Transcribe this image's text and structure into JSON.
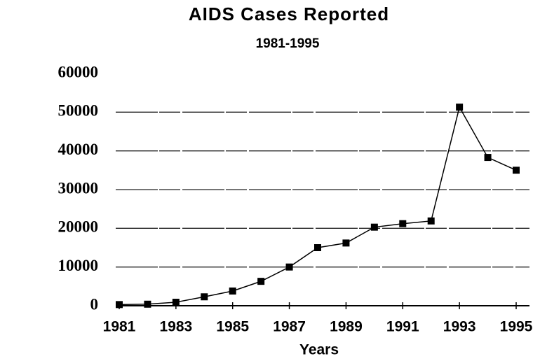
{
  "chart_data": {
    "type": "line",
    "title": "AIDS Cases Reported",
    "subtitle": "1981-1995",
    "xlabel": "Years",
    "x": [
      1981,
      1982,
      1983,
      1984,
      1985,
      1986,
      1987,
      1988,
      1989,
      1990,
      1991,
      1992,
      1993,
      1994,
      1995
    ],
    "series": [
      {
        "name": "AIDS cases",
        "color": "#000000",
        "values": [
          300,
          400,
          900,
          2300,
          3800,
          6300,
          10000,
          15000,
          16200,
          20300,
          21200,
          21900,
          51300,
          38300,
          35000
        ]
      }
    ],
    "xlim": [
      1981,
      1995
    ],
    "xticks": [
      1981,
      1983,
      1985,
      1987,
      1989,
      1991,
      1993,
      1995
    ],
    "ylim": [
      0,
      60000
    ],
    "yticks": [
      0,
      10000,
      20000,
      30000,
      40000,
      50000,
      60000
    ],
    "grid": true
  }
}
